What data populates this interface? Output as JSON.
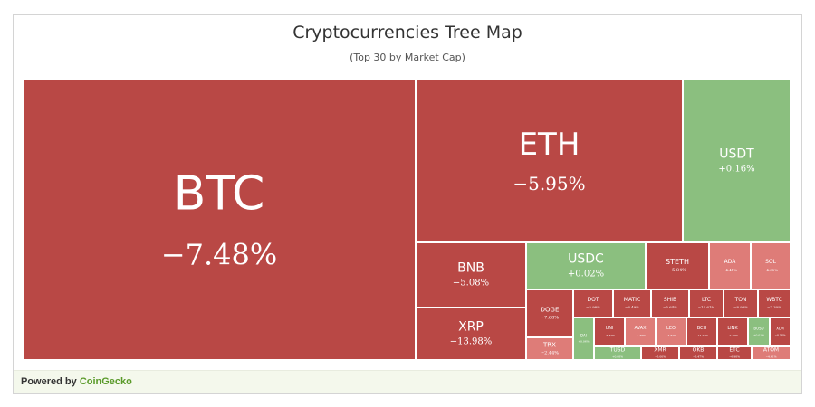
{
  "header": {
    "title": "Cryptocurrencies Tree Map",
    "subtitle": "(Top 30 by Market Cap)"
  },
  "footer": {
    "powered_by": "Powered by",
    "brand": "CoinGecko"
  },
  "colors": {
    "negative_strong": "#b94845",
    "negative_light": "#de7c78",
    "positive": "#8bbf7f"
  },
  "chart_data": {
    "type": "treemap",
    "title": "Cryptocurrencies Tree Map",
    "subtitle": "(Top 30 by Market Cap)",
    "items": [
      {
        "symbol": "BTC",
        "change": "−7.48%",
        "change_pct": -7.48
      },
      {
        "symbol": "ETH",
        "change": "−5.95%",
        "change_pct": -5.95
      },
      {
        "symbol": "USDT",
        "change": "+0.16%",
        "change_pct": 0.16
      },
      {
        "symbol": "BNB",
        "change": "−5.08%",
        "change_pct": -5.08
      },
      {
        "symbol": "XRP",
        "change": "−13.98%",
        "change_pct": -13.98
      },
      {
        "symbol": "USDC",
        "change": "+0.02%",
        "change_pct": 0.02
      },
      {
        "symbol": "STETH",
        "change": "−5.84%",
        "change_pct": -5.84
      },
      {
        "symbol": "ADA",
        "change": "−4.41%",
        "change_pct": -4.41
      },
      {
        "symbol": "SOL",
        "change": "−4.05%",
        "change_pct": -4.05
      },
      {
        "symbol": "DOGE",
        "change": "−7.68%",
        "change_pct": -7.68
      },
      {
        "symbol": "DOT",
        "change": "−5.98%",
        "change_pct": -5.98
      },
      {
        "symbol": "MATIC",
        "change": "−6.49%",
        "change_pct": -6.49
      },
      {
        "symbol": "SHIB",
        "change": "−5.64%",
        "change_pct": -5.64
      },
      {
        "symbol": "LTC",
        "change": "−14.61%",
        "change_pct": -14.61
      },
      {
        "symbol": "TON",
        "change": "−8.98%",
        "change_pct": -8.98
      },
      {
        "symbol": "WBTC",
        "change": "−7.30%",
        "change_pct": -7.3
      },
      {
        "symbol": "TRX",
        "change": "−2.44%",
        "change_pct": -2.44
      },
      {
        "symbol": "DAI",
        "change": "+0.06%",
        "change_pct": 0.06
      },
      {
        "symbol": "UNI",
        "change": "−6.82%",
        "change_pct": -6.82
      },
      {
        "symbol": "AVAX",
        "change": "−4.36%",
        "change_pct": -4.36
      },
      {
        "symbol": "LEO",
        "change": "−3.82%",
        "change_pct": -3.82
      },
      {
        "symbol": "BCH",
        "change": "−14.42%",
        "change_pct": -14.42
      },
      {
        "symbol": "LINK",
        "change": "−7.49%",
        "change_pct": -7.49
      },
      {
        "symbol": "BUSD",
        "change": "+0.01%",
        "change_pct": 0.01
      },
      {
        "symbol": "XLM",
        "change": "−8.58%",
        "change_pct": -8.58
      },
      {
        "symbol": "TUSD",
        "change": "+0.08%",
        "change_pct": 0.08
      },
      {
        "symbol": "XMR",
        "change": "−5.00%",
        "change_pct": -5.0
      },
      {
        "symbol": "OKB",
        "change": "−5.47%",
        "change_pct": -5.47
      },
      {
        "symbol": "ETC",
        "change": "−6.98%",
        "change_pct": -6.98
      },
      {
        "symbol": "ATOM",
        "change": "−4.61%",
        "change_pct": -4.61
      }
    ]
  }
}
